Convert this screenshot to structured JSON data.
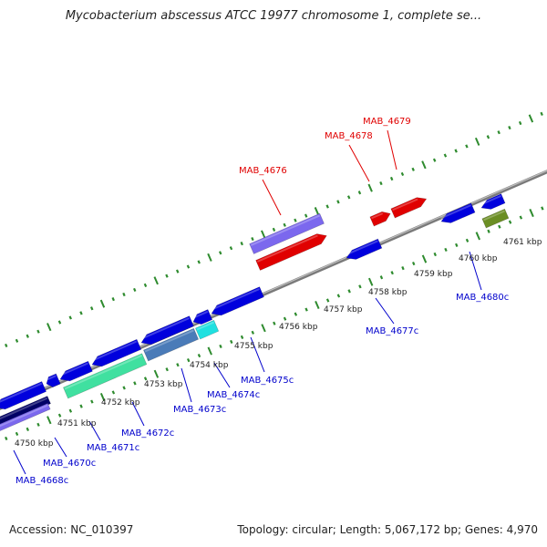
{
  "title": "Mycobacterium abscessus ATCC 19977 chromosome 1, complete se...",
  "footer": {
    "accession": "Accession: NC_010397",
    "summary": "Topology: circular; Length: 5,067,172 bp; Genes: 4,970"
  },
  "colors": {
    "backbone": "#8c8c8c",
    "ticks": "#2e8b2e",
    "gene_forward": "#e00000",
    "gene_reverse": "#0000dd",
    "label_forward": "#e00000",
    "label_reverse": "#0000cc",
    "highlight_purple": "#7b68ee",
    "highlight_green": "#40e0a0",
    "highlight_cyan": "#20e0e0",
    "highlight_olive": "#6b8e23",
    "highlight_navy": "#000066"
  },
  "kbp_labels": [
    "4750 kbp",
    "4751 kbp",
    "4752 kbp",
    "4753 kbp",
    "4754 kbp",
    "4755 kbp",
    "4756 kbp",
    "4757 kbp",
    "4758 kbp",
    "4759 kbp",
    "4760 kbp",
    "4761 kbp"
  ],
  "gene_labels": [
    {
      "text": "MAB_4676",
      "strand": "forward"
    },
    {
      "text": "MAB_4678",
      "strand": "forward"
    },
    {
      "text": "MAB_4679",
      "strand": "forward"
    },
    {
      "text": "MAB_4668c",
      "strand": "reverse"
    },
    {
      "text": "MAB_4670c",
      "strand": "reverse"
    },
    {
      "text": "MAB_4671c",
      "strand": "reverse"
    },
    {
      "text": "MAB_4672c",
      "strand": "reverse"
    },
    {
      "text": "MAB_4673c",
      "strand": "reverse"
    },
    {
      "text": "MAB_4674c",
      "strand": "reverse"
    },
    {
      "text": "MAB_4675c",
      "strand": "reverse"
    },
    {
      "text": "MAB_4677c",
      "strand": "reverse"
    },
    {
      "text": "MAB_4680c",
      "strand": "reverse"
    }
  ]
}
